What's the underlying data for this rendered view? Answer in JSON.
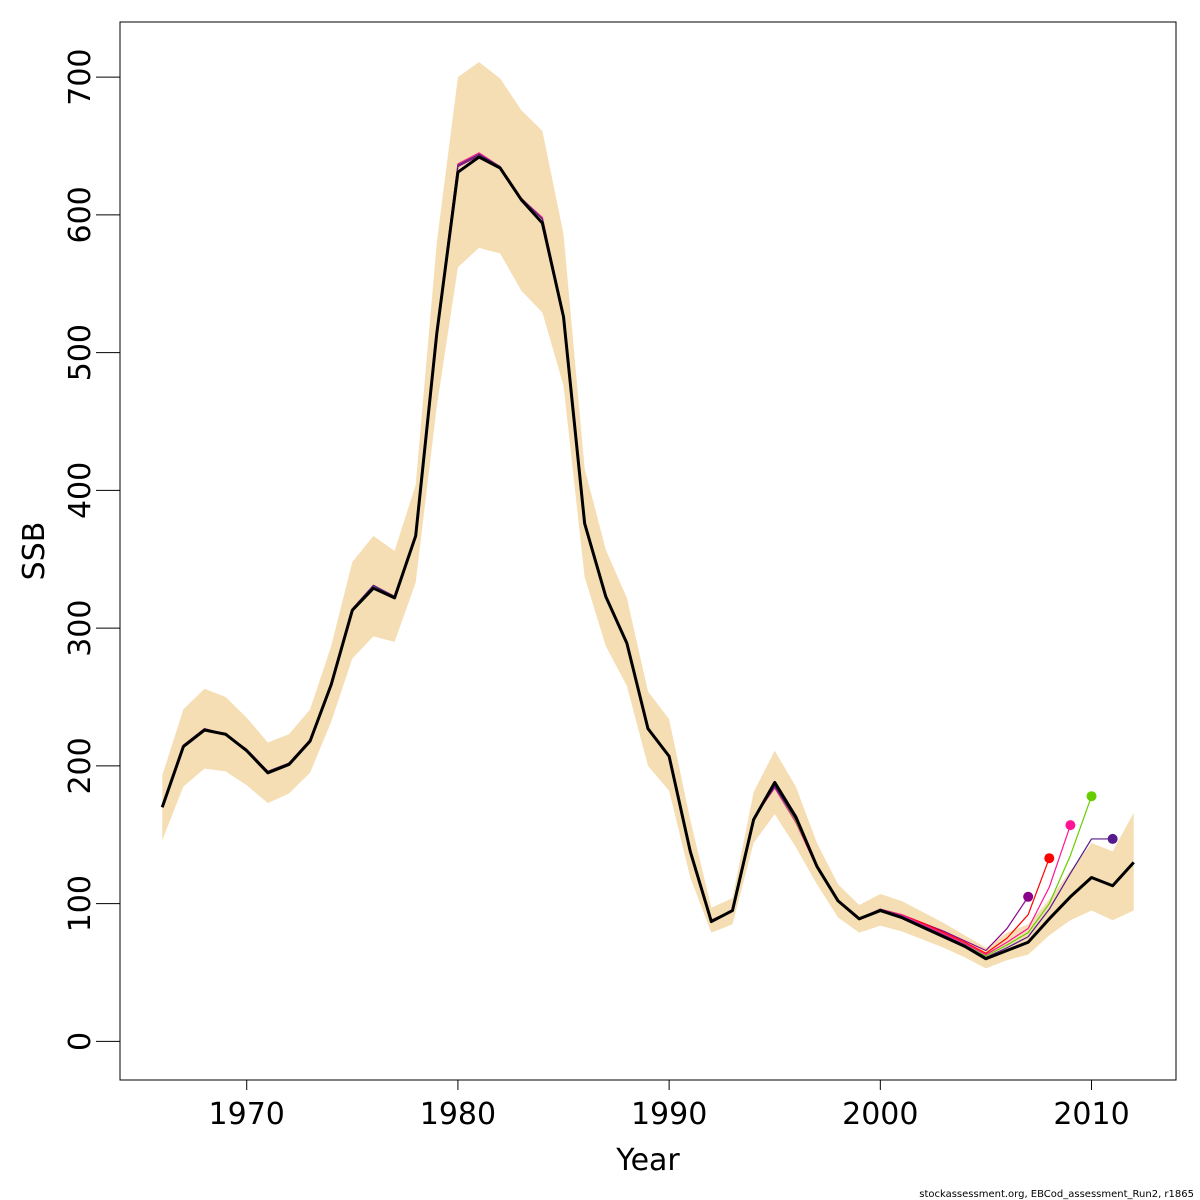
{
  "chart_data": {
    "type": "line",
    "xlabel": "Year",
    "ylabel": "SSB",
    "xlim": [
      1964,
      2014
    ],
    "ylim": [
      -28,
      740
    ],
    "x_ticks": [
      1970,
      1980,
      1990,
      2000,
      2010
    ],
    "y_ticks": [
      0,
      100,
      200,
      300,
      400,
      500,
      600,
      700
    ],
    "grid": false,
    "legend": "none",
    "caption": "stockassessment.org, EBCod_assessment_Run2, r1865",
    "band": {
      "color": "#f5deb3",
      "x": [
        1966,
        1967,
        1968,
        1969,
        1970,
        1971,
        1972,
        1973,
        1974,
        1975,
        1976,
        1977,
        1978,
        1979,
        1980,
        1981,
        1982,
        1983,
        1984,
        1985,
        1986,
        1987,
        1988,
        1989,
        1990,
        1991,
        1992,
        1993,
        1994,
        1995,
        1996,
        1997,
        1998,
        1999,
        2000,
        2001,
        2002,
        2003,
        2004,
        2005,
        2006,
        2007,
        2008,
        2009,
        2010,
        2011,
        2012
      ],
      "upper": [
        193,
        241,
        256,
        250,
        235,
        217,
        223,
        241,
        287,
        348,
        367,
        356,
        404,
        580,
        700,
        711,
        699,
        676,
        661,
        586,
        416,
        357,
        322,
        254,
        234,
        161,
        97,
        104,
        181,
        211,
        185,
        144,
        114,
        99,
        107,
        102,
        94,
        86,
        77,
        68,
        79,
        85,
        103,
        124,
        144,
        138,
        166
      ],
      "lower": [
        146,
        185,
        198,
        196,
        186,
        173,
        180,
        195,
        232,
        278,
        294,
        290,
        333,
        461,
        562,
        576,
        572,
        545,
        529,
        476,
        337,
        287,
        258,
        200,
        182,
        119,
        79,
        85,
        144,
        165,
        141,
        114,
        90,
        79,
        84,
        80,
        74,
        68,
        61,
        53,
        59,
        63,
        77,
        88,
        95,
        88,
        95
      ]
    },
    "series": [
      {
        "color": "#000000",
        "x": [
          1966,
          1967,
          1968,
          1969,
          1970,
          1971,
          1972,
          1973,
          1974,
          1975,
          1976,
          1977,
          1978,
          1979,
          1980,
          1981,
          1982,
          1983,
          1984,
          1985,
          1986,
          1987,
          1988,
          1989,
          1990,
          1991,
          1992,
          1993,
          1994,
          1995,
          1996,
          1997,
          1998,
          1999,
          2000,
          2001,
          2002,
          2003,
          2004,
          2005,
          2006,
          2007,
          2008,
          2009,
          2010,
          2011,
          2012
        ],
        "y": [
          170,
          214,
          226,
          223,
          211,
          195,
          201,
          218,
          259,
          313,
          329,
          322,
          367,
          514,
          631,
          642,
          634,
          611,
          594,
          526,
          376,
          323,
          289,
          227,
          207,
          138,
          87,
          95,
          161,
          188,
          163,
          127,
          102,
          89,
          95,
          90,
          83,
          76,
          69,
          60,
          66,
          72,
          89,
          105,
          119,
          113,
          130
        ]
      },
      {
        "color": "#8b008b",
        "x": [
          1966,
          1967,
          1968,
          1969,
          1970,
          1971,
          1972,
          1973,
          1974,
          1975,
          1976,
          1977,
          1978,
          1979,
          1980,
          1981,
          1982,
          1983,
          1984,
          1985,
          1986,
          1987,
          1988,
          1989,
          1990,
          1991,
          1992,
          1993,
          1994,
          1995,
          1996,
          1997,
          1998,
          1999,
          2000,
          2001,
          2002,
          2003,
          2004,
          2005,
          2006,
          2007
        ],
        "y": [
          170,
          215,
          227,
          223,
          212,
          196,
          202,
          219,
          260,
          314,
          331,
          323,
          368,
          516,
          635,
          643,
          635,
          612,
          597,
          527,
          377,
          323,
          290,
          227,
          207,
          138,
          88,
          95,
          162,
          186,
          162,
          128,
          102,
          89,
          96,
          92,
          86,
          80,
          73,
          66,
          82,
          105
        ],
        "end_point": {
          "x": 2007,
          "y": 105
        }
      },
      {
        "color": "#ff0000",
        "x": [
          1966,
          1967,
          1968,
          1969,
          1970,
          1971,
          1972,
          1973,
          1974,
          1975,
          1976,
          1977,
          1978,
          1979,
          1980,
          1981,
          1982,
          1983,
          1984,
          1985,
          1986,
          1987,
          1988,
          1989,
          1990,
          1991,
          1992,
          1993,
          1994,
          1995,
          1996,
          1997,
          1998,
          1999,
          2000,
          2001,
          2002,
          2003,
          2004,
          2005,
          2006,
          2007,
          2008
        ],
        "y": [
          170,
          215,
          227,
          223,
          212,
          196,
          202,
          219,
          260,
          314,
          331,
          323,
          368,
          516,
          636,
          644,
          635,
          612,
          597,
          527,
          377,
          323,
          290,
          227,
          207,
          138,
          88,
          95,
          162,
          185,
          160,
          127,
          102,
          89,
          96,
          92,
          86,
          79,
          72,
          64,
          75,
          92,
          133
        ],
        "end_point": {
          "x": 2008,
          "y": 133
        }
      },
      {
        "color": "#ff1493",
        "x": [
          1966,
          1967,
          1968,
          1969,
          1970,
          1971,
          1972,
          1973,
          1974,
          1975,
          1976,
          1977,
          1978,
          1979,
          1980,
          1981,
          1982,
          1983,
          1984,
          1985,
          1986,
          1987,
          1988,
          1989,
          1990,
          1991,
          1992,
          1993,
          1994,
          1995,
          1996,
          1997,
          1998,
          1999,
          2000,
          2001,
          2002,
          2003,
          2004,
          2005,
          2006,
          2007,
          2008,
          2009
        ],
        "y": [
          170,
          215,
          227,
          223,
          212,
          196,
          202,
          219,
          260,
          314,
          331,
          323,
          368,
          516,
          637,
          645,
          635,
          612,
          598,
          527,
          377,
          323,
          290,
          227,
          207,
          138,
          88,
          95,
          162,
          184,
          159,
          126,
          102,
          89,
          96,
          92,
          85,
          78,
          71,
          63,
          72,
          82,
          112,
          157
        ],
        "end_point": {
          "x": 2009,
          "y": 157
        }
      },
      {
        "color": "#66cd00",
        "x": [
          1966,
          1967,
          1968,
          1969,
          1970,
          1971,
          1972,
          1973,
          1974,
          1975,
          1976,
          1977,
          1978,
          1979,
          1980,
          1981,
          1982,
          1983,
          1984,
          1985,
          1986,
          1987,
          1988,
          1989,
          1990,
          1991,
          1992,
          1993,
          1994,
          1995,
          1996,
          1997,
          1998,
          1999,
          2000,
          2001,
          2002,
          2003,
          2004,
          2005,
          2006,
          2007,
          2008,
          2009,
          2010
        ],
        "y": [
          170,
          215,
          227,
          223,
          212,
          196,
          202,
          219,
          260,
          314,
          331,
          323,
          368,
          516,
          636,
          644,
          635,
          612,
          597,
          527,
          377,
          323,
          290,
          227,
          207,
          138,
          88,
          95,
          162,
          185,
          160,
          127,
          102,
          89,
          96,
          91,
          84,
          77,
          70,
          62,
          70,
          79,
          100,
          135,
          178
        ],
        "end_point": {
          "x": 2010,
          "y": 178
        }
      },
      {
        "color": "#551a8b",
        "x": [
          1966,
          1967,
          1968,
          1969,
          1970,
          1971,
          1972,
          1973,
          1974,
          1975,
          1976,
          1977,
          1978,
          1979,
          1980,
          1981,
          1982,
          1983,
          1984,
          1985,
          1986,
          1987,
          1988,
          1989,
          1990,
          1991,
          1992,
          1993,
          1994,
          1995,
          1996,
          1997,
          1998,
          1999,
          2000,
          2001,
          2002,
          2003,
          2004,
          2005,
          2006,
          2007,
          2008,
          2009,
          2010,
          2011
        ],
        "y": [
          170,
          215,
          227,
          223,
          212,
          196,
          202,
          219,
          260,
          314,
          331,
          323,
          368,
          516,
          636,
          644,
          635,
          612,
          597,
          527,
          377,
          323,
          290,
          227,
          207,
          138,
          88,
          95,
          162,
          185,
          161,
          127,
          102,
          89,
          96,
          91,
          84,
          77,
          70,
          61,
          68,
          76,
          96,
          122,
          147,
          147
        ],
        "end_point": {
          "x": 2011,
          "y": 147
        }
      }
    ]
  }
}
